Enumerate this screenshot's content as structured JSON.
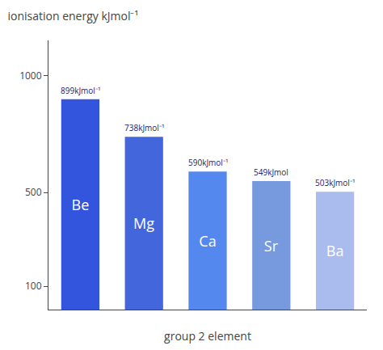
{
  "chart_data": {
    "type": "bar",
    "title": "ionisation energy kJmol⁻¹",
    "xlabel": "group 2 element",
    "categories": [
      "Be",
      "Mg",
      "Ca",
      "Sr",
      "Ba"
    ],
    "values": [
      899,
      738,
      590,
      549,
      503
    ],
    "value_labels": [
      "899kJmol⁻¹",
      "738kJmol⁻¹",
      "590kJmol⁻¹",
      "549kJmol",
      "503kJmol⁻¹"
    ],
    "colors": [
      "#3355dd",
      "#4466dd",
      "#5588ee",
      "#7799dd",
      "#aabbee"
    ],
    "ylim": [
      0,
      1150
    ],
    "yticks": [
      100,
      500,
      1000
    ],
    "grid": false,
    "data_labels": true,
    "tick_labels": "y"
  }
}
